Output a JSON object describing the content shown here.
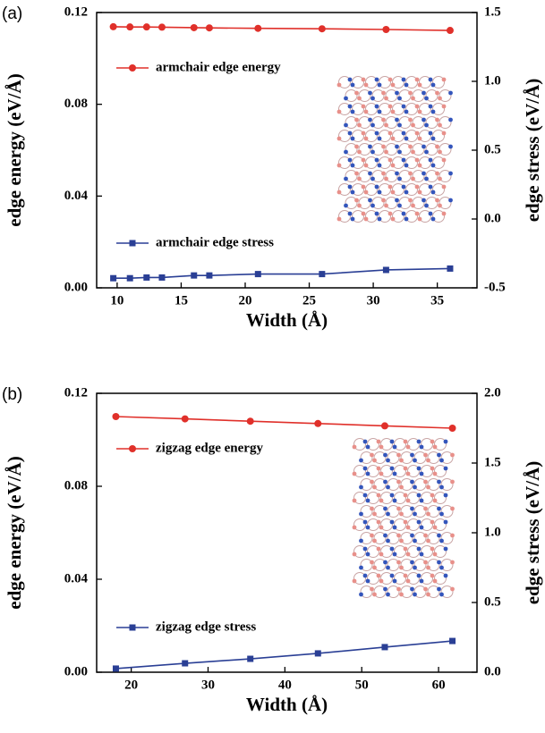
{
  "chart_data": [
    {
      "type": "line",
      "panel_label": "(a)",
      "xlabel": "Width (Å)",
      "ylabel": "edge energy (eV/Å)",
      "y2label": "edge stress (eV/Å)",
      "xlim": [
        8.4,
        38.1
      ],
      "xticks": [
        10,
        15,
        20,
        25,
        30,
        35
      ],
      "ylim": [
        0,
        0.12
      ],
      "yticks": [
        {
          "value": 0,
          "label": "0.00"
        },
        {
          "value": 0.04,
          "label": "0.04"
        },
        {
          "value": 0.08,
          "label": "0.08"
        },
        {
          "value": 0.12,
          "label": "0.12"
        }
      ],
      "y2lim": [
        -0.5,
        1.5
      ],
      "y2ticks": [
        -0.5,
        {
          "value": 0,
          "label": "0.0"
        },
        0.5,
        {
          "value": 1,
          "label": "1.0"
        },
        1.5
      ],
      "x": [
        9.7,
        11,
        12.3,
        13.5,
        16,
        17.2,
        21,
        26,
        31,
        36
      ],
      "series": [
        {
          "name": "armchair edge energy",
          "color": "#e0302a",
          "marker": "circle",
          "values": [
            0.1138,
            0.1137,
            0.1137,
            0.1136,
            0.1134,
            0.1133,
            0.1131,
            0.1129,
            0.1126,
            0.1122
          ]
        },
        {
          "name": "armchair edge stress",
          "color": "#2a3f95",
          "marker": "square",
          "axis": "y2",
          "values": [
            -0.43,
            -0.43,
            -0.425,
            -0.425,
            -0.41,
            -0.41,
            -0.4,
            -0.4,
            -0.37,
            -0.36
          ]
        }
      ]
    },
    {
      "type": "line",
      "panel_label": "(b)",
      "xlabel": "Width (Å)",
      "ylabel": "edge energy (eV/Å)",
      "y2label": "edge stress (eV/Å)",
      "xlim": [
        15.5,
        65
      ],
      "xticks": [
        20,
        30,
        40,
        50,
        60
      ],
      "ylim": [
        0,
        0.12
      ],
      "yticks": [
        {
          "value": 0,
          "label": "0.00"
        },
        {
          "value": 0.04,
          "label": "0.04"
        },
        {
          "value": 0.08,
          "label": "0.08"
        },
        {
          "value": 0.12,
          "label": "0.12"
        }
      ],
      "y2lim": [
        0,
        2
      ],
      "y2ticks": [
        {
          "value": 0,
          "label": "0.0"
        },
        0.5,
        {
          "value": 1,
          "label": "1.0"
        },
        1.5,
        {
          "value": 2,
          "label": "2.0"
        }
      ],
      "x": [
        18,
        27,
        35.5,
        44.3,
        53,
        61.8
      ],
      "series": [
        {
          "name": "zigzag edge energy",
          "color": "#e0302a",
          "marker": "circle",
          "values": [
            0.11,
            0.109,
            0.108,
            0.107,
            0.106,
            0.105
          ]
        },
        {
          "name": "zigzag edge stress",
          "color": "#2a3f95",
          "marker": "square",
          "axis": "y2",
          "values": [
            0.026,
            0.064,
            0.096,
            0.135,
            0.18,
            0.224
          ]
        }
      ]
    }
  ]
}
